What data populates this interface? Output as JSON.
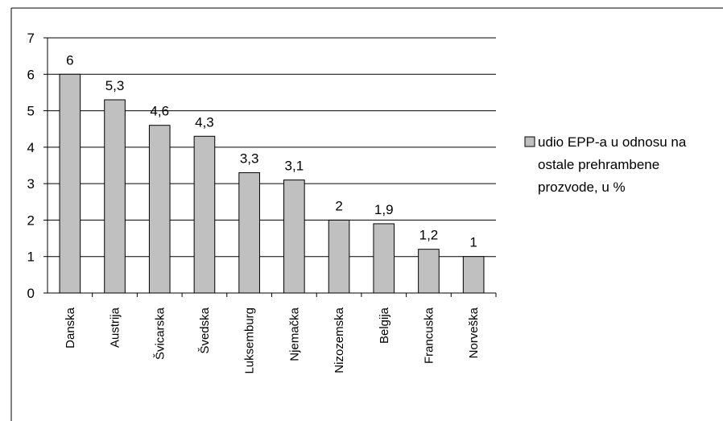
{
  "chart_data": {
    "type": "bar",
    "categories": [
      "Danska",
      "Austrija",
      "Švicarska",
      "Švedska",
      "Luksemburg",
      "Njemačka",
      "Nizozemska",
      "Belgija",
      "Francuska",
      "Norveška"
    ],
    "series": [
      {
        "name": "udio EPP-a u odnosu na ostale prehrambene prozvode, u %",
        "values": [
          6,
          5.3,
          4.6,
          4.3,
          3.3,
          3.1,
          2,
          1.9,
          1.2,
          1
        ],
        "value_labels": [
          "6",
          "5,3",
          "4,6",
          "4,3",
          "3,3",
          "3,1",
          "2",
          "1,9",
          "1,2",
          "1"
        ]
      }
    ],
    "ylim": [
      0,
      7
    ],
    "yticks": [
      "0",
      "1",
      "2",
      "3",
      "4",
      "5",
      "6",
      "7"
    ],
    "grid": true,
    "legend_position": "right",
    "legend_lines": [
      "udio EPP-a u odnosu na",
      "ostale prehrambene",
      "prozvode, u %"
    ],
    "colors": {
      "bar_fill": "#c0c0c0",
      "bar_stroke": "#000000",
      "grid": "#000000"
    }
  }
}
